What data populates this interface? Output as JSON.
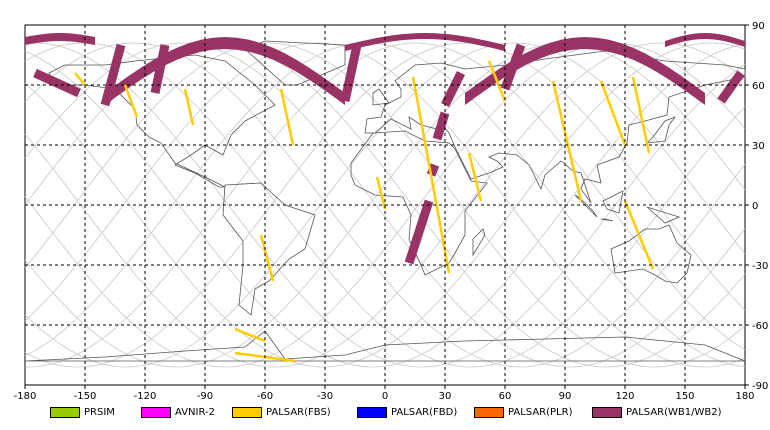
{
  "map": {
    "x_ticks": [
      "-180",
      "-150",
      "-120",
      "-90",
      "-60",
      "-30",
      "0",
      "30",
      "60",
      "90",
      "120",
      "150",
      "180"
    ],
    "y_ticks": [
      "90",
      "60",
      "30",
      "0",
      "-30",
      "-60",
      "-90"
    ],
    "lon_range": [
      -180,
      180
    ],
    "lat_range": [
      -90,
      90
    ],
    "grid": "dashed",
    "projection": "equirectangular"
  },
  "legend": {
    "items": [
      {
        "label": "PRSIM",
        "color": "#99cc00"
      },
      {
        "label": "AVNIR-2",
        "color": "#ff00ff"
      },
      {
        "label": "PALSAR(FBS)",
        "color": "#ffcc00"
      },
      {
        "label": "PALSAR(FBD)",
        "color": "#0000ff"
      },
      {
        "label": "PALSAR(PLR)",
        "color": "#ff6600"
      },
      {
        "label": "PALSAR(WB1/WB2)",
        "color": "#993366"
      }
    ]
  },
  "coverage": {
    "wb_strips": [
      {
        "lon_start": -175,
        "lon_end": -153,
        "lat_top": 66,
        "lat_bottom": 56
      },
      {
        "lon_start": -132,
        "lon_end": -140,
        "lat_top": 80,
        "lat_bottom": 50
      },
      {
        "lon_start": -110,
        "lon_end": -115,
        "lat_top": 80,
        "lat_bottom": 56
      },
      {
        "lon_start": -14,
        "lon_end": -20,
        "lat_top": 80,
        "lat_bottom": 52
      },
      {
        "lon_start": 38,
        "lon_end": 30,
        "lat_top": 66,
        "lat_bottom": 50
      },
      {
        "lon_start": 30,
        "lon_end": 26,
        "lat_top": 46,
        "lat_bottom": 33
      },
      {
        "lon_start": 22,
        "lon_end": 12,
        "lat_top": 2,
        "lat_bottom": -29
      },
      {
        "lon_start": 25,
        "lon_end": 23,
        "lat_top": 20,
        "lat_bottom": 15
      },
      {
        "lon_start": 68,
        "lon_end": 60,
        "lat_top": 80,
        "lat_bottom": 58
      },
      {
        "lon_start": 178,
        "lon_end": 168,
        "lat_top": 66,
        "lat_bottom": 52
      }
    ],
    "fbs_strips": [
      {
        "lon_start": -155,
        "lon_end": -150,
        "lat_top": 66,
        "lat_bottom": 60
      },
      {
        "lon_start": -130,
        "lon_end": -124,
        "lat_top": 60,
        "lat_bottom": 44
      },
      {
        "lon_start": -100,
        "lon_end": -96,
        "lat_top": 58,
        "lat_bottom": 40
      },
      {
        "lon_start": -52,
        "lon_end": -46,
        "lat_top": 58,
        "lat_bottom": 30
      },
      {
        "lon_start": -4,
        "lon_end": 0,
        "lat_top": 14,
        "lat_bottom": -2
      },
      {
        "lon_start": 14,
        "lon_end": 32,
        "lat_top": 64,
        "lat_bottom": -34
      },
      {
        "lon_start": 42,
        "lon_end": 48,
        "lat_top": 26,
        "lat_bottom": 2
      },
      {
        "lon_start": 52,
        "lon_end": 60,
        "lat_top": 72,
        "lat_bottom": 52
      },
      {
        "lon_start": 84,
        "lon_end": 98,
        "lat_top": 62,
        "lat_bottom": 2
      },
      {
        "lon_start": 108,
        "lon_end": 120,
        "lat_top": 62,
        "lat_bottom": 30
      },
      {
        "lon_start": 124,
        "lon_end": 132,
        "lat_top": 64,
        "lat_bottom": 26
      },
      {
        "lon_start": 120,
        "lon_end": 134,
        "lat_top": 2,
        "lat_bottom": -32
      },
      {
        "lon_start": -62,
        "lon_end": -56,
        "lat_top": -15,
        "lat_bottom": -38
      },
      {
        "lon_start": -75,
        "lon_end": -60,
        "lat_top": -62,
        "lat_bottom": -68
      },
      {
        "lon_start": -75,
        "lon_end": -45,
        "lat_top": -74,
        "lat_bottom": -78
      }
    ]
  }
}
